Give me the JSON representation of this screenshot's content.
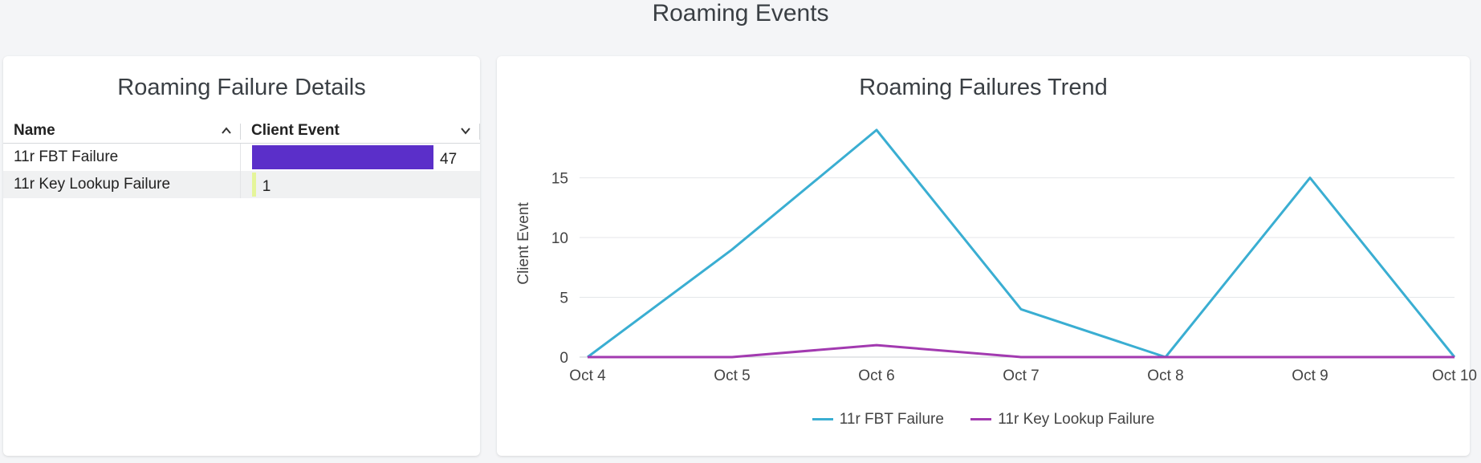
{
  "page_title": "Roaming Events",
  "details": {
    "title": "Roaming Failure Details",
    "columns": {
      "name": "Name",
      "event": "Client Event"
    },
    "rows": [
      {
        "name": "11r FBT Failure",
        "value": 47,
        "value_text": "47",
        "color": "#5b2fc9"
      },
      {
        "name": "11r Key Lookup Failure",
        "value": 1,
        "value_text": "1",
        "color": "#e5f59a"
      }
    ]
  },
  "trend": {
    "title": "Roaming Failures Trend",
    "chart_data": {
      "type": "line",
      "title": "Roaming Failures Trend",
      "xlabel": "",
      "ylabel": "Client Event",
      "categories": [
        "Oct 4",
        "Oct 5",
        "Oct 6",
        "Oct 7",
        "Oct 8",
        "Oct 9",
        "Oct 10"
      ],
      "ylim": [
        0,
        19
      ],
      "yticks": [
        0,
        5,
        10,
        15
      ],
      "grid": true,
      "legend": "bottom",
      "series": [
        {
          "name": "11r FBT Failure",
          "values": [
            0,
            9,
            19,
            4,
            0,
            15,
            0
          ],
          "color": "#3aaed2"
        },
        {
          "name": "11r Key Lookup Failure",
          "values": [
            0,
            0,
            1,
            0,
            0,
            0,
            0
          ],
          "color": "#a23ab0"
        }
      ]
    }
  }
}
